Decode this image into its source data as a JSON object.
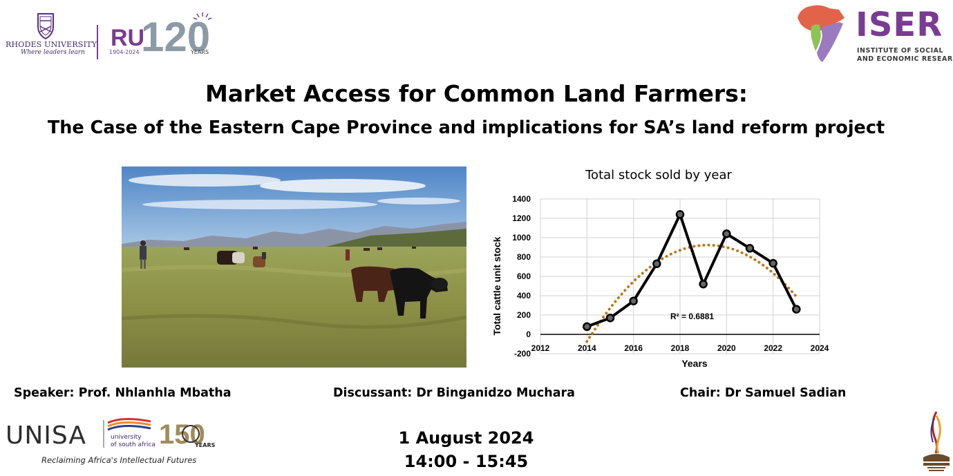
{
  "logos": {
    "rhodes_name": "RHODES UNIVERSITY",
    "rhodes_tagline": "Where leaders learn",
    "ru_mark": "RU",
    "ru_number": "120",
    "ru_years_range": "1904-2024",
    "ru_years_word": "YEARS",
    "iser_name": "ISER",
    "iser_sub_line1": "INSTITUTE OF SOCIAL",
    "iser_sub_line2": "AND ECONOMIC RESEARCH",
    "unisa_name": "UNISA",
    "unisa_sub_line1": "university",
    "unisa_sub_line2": "of south africa",
    "unisa_tagline": "Reclaiming Africa's Intellectual Futures",
    "unisa_anniversary": "150",
    "unisa_years_word": "YEARS"
  },
  "title": "Market Access for Common Land Farmers:",
  "subtitle": "The Case of the Eastern Cape Province and implications for SA’s land reform project",
  "people": {
    "speaker": "Speaker:  Prof. Nhlanhla Mbatha",
    "discussant": "Discussant: Dr Binganidzo Muchara",
    "chair": "Chair: Dr Samuel Sadian"
  },
  "event": {
    "date": "1 August 2024",
    "time": "14:00 - 15:45"
  },
  "colors": {
    "purple": "#7a3b92",
    "trend": "#b87a1a",
    "series": "#000000"
  },
  "chart_data": {
    "type": "scatter",
    "title": "Total stock sold by year",
    "xlabel": "Years",
    "ylabel": "Total cattle unit stock",
    "xlim": [
      2012,
      2024
    ],
    "ylim": [
      -200,
      1400
    ],
    "x_ticks": [
      2012,
      2014,
      2016,
      2018,
      2020,
      2022,
      2024
    ],
    "y_ticks": [
      -200,
      0,
      200,
      400,
      600,
      800,
      1000,
      1200,
      1400
    ],
    "grid": true,
    "annotation": "R² = 0.6881",
    "series": [
      {
        "x": [
          2014,
          2015,
          2016,
          2017,
          2018,
          2019,
          2020,
          2021,
          2022,
          2023
        ],
        "y": [
          80,
          170,
          345,
          730,
          1240,
          520,
          1040,
          890,
          735,
          260
        ]
      }
    ],
    "trendline": "polynomial"
  }
}
